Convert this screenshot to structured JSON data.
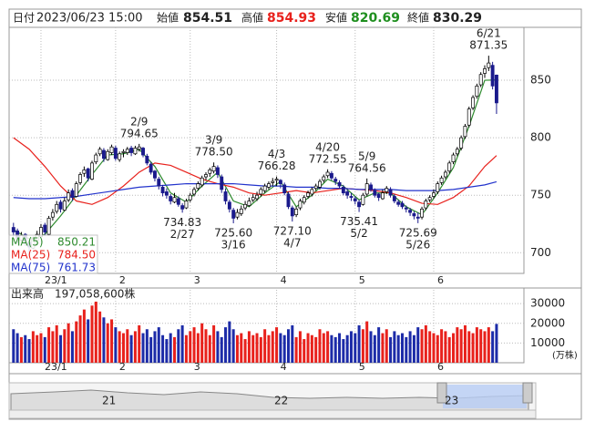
{
  "header": {
    "date_label": "日付",
    "date": "2023/06/23 15:00",
    "open_label": "始値",
    "open": "854.51",
    "high_label": "高値",
    "high": "854.93",
    "low_label": "安値",
    "low": "820.69",
    "close_label": "終値",
    "close": "830.29"
  },
  "chart_data": [
    {
      "type": "candlestick",
      "ylim": [
        682,
        896
      ],
      "yticks": [
        700,
        750,
        800,
        850
      ],
      "grid": true,
      "xticks": [
        {
          "value": 7,
          "label": "23/1"
        },
        {
          "value": 26,
          "label": "2"
        },
        {
          "value": 45,
          "label": "3"
        },
        {
          "value": 67,
          "label": "4"
        },
        {
          "value": 87,
          "label": "5"
        },
        {
          "value": 107,
          "label": "6"
        }
      ],
      "up_color": "#ffffff",
      "down_color": "#1a1a8c",
      "candles": [
        [
          722,
          726,
          714,
          718
        ],
        [
          719,
          721,
          708,
          712
        ],
        [
          711,
          718,
          709,
          715
        ],
        [
          716,
          717,
          706,
          710
        ],
        [
          709,
          711,
          700,
          705
        ],
        [
          704,
          714,
          703,
          712
        ],
        [
          711,
          719,
          710,
          716
        ],
        [
          714,
          725,
          712,
          722
        ],
        [
          724,
          726,
          715,
          718
        ],
        [
          716,
          732,
          715,
          730
        ],
        [
          731,
          738,
          728,
          735
        ],
        [
          736,
          745,
          734,
          742
        ],
        [
          744,
          746,
          735,
          738
        ],
        [
          737,
          748,
          736,
          745
        ],
        [
          746,
          755,
          744,
          752
        ],
        [
          754,
          756,
          745,
          748
        ],
        [
          749,
          762,
          748,
          760
        ],
        [
          761,
          770,
          759,
          768
        ],
        [
          769,
          775,
          766,
          772
        ],
        [
          773,
          774,
          762,
          765
        ],
        [
          764,
          780,
          763,
          778
        ],
        [
          779,
          787,
          777,
          785
        ],
        [
          786,
          792,
          784,
          790
        ],
        [
          789,
          791,
          779,
          782
        ],
        [
          781,
          790,
          780,
          788
        ],
        [
          787,
          794,
          785,
          792
        ],
        [
          791,
          793,
          780,
          782
        ],
        [
          781,
          788,
          779,
          786
        ],
        [
          787,
          790,
          783,
          788
        ],
        [
          787,
          792,
          785,
          790
        ],
        [
          791,
          793,
          784,
          787
        ],
        [
          786,
          793,
          785,
          791
        ],
        [
          790,
          794.65,
          788,
          792
        ],
        [
          791,
          792,
          783,
          785
        ],
        [
          784,
          786,
          776,
          778
        ],
        [
          777,
          779,
          768,
          770
        ],
        [
          771,
          772,
          762,
          765
        ],
        [
          764,
          766,
          755,
          758
        ],
        [
          757,
          759,
          749,
          752
        ],
        [
          753,
          756,
          747,
          750
        ],
        [
          749,
          751,
          742,
          745
        ],
        [
          744,
          752,
          743,
          748
        ],
        [
          747,
          749,
          740,
          742
        ],
        [
          741,
          743,
          734.83,
          738
        ],
        [
          739,
          747,
          738,
          745
        ],
        [
          746,
          752,
          744,
          750
        ],
        [
          751,
          757,
          749,
          755
        ],
        [
          756,
          762,
          754,
          760
        ],
        [
          759,
          767,
          757,
          765
        ],
        [
          766,
          770,
          763,
          768
        ],
        [
          769,
          774,
          766,
          772
        ],
        [
          771,
          778.5,
          769,
          775
        ],
        [
          774,
          776,
          765,
          768
        ],
        [
          766,
          768,
          752,
          755
        ],
        [
          753,
          756,
          742,
          745
        ],
        [
          744,
          746,
          735,
          738
        ],
        [
          737,
          739,
          725.6,
          730
        ],
        [
          731,
          738,
          729,
          735
        ],
        [
          734,
          741,
          732,
          738
        ],
        [
          739,
          745,
          737,
          742
        ],
        [
          741,
          748,
          740,
          745
        ],
        [
          746,
          751,
          744,
          748
        ],
        [
          747,
          753,
          745,
          750
        ],
        [
          751,
          757,
          749,
          755
        ],
        [
          754,
          760,
          752,
          758
        ],
        [
          757,
          762,
          755,
          760
        ],
        [
          761,
          765,
          758,
          762
        ],
        [
          763,
          766.28,
          758,
          764
        ],
        [
          763,
          764,
          756,
          760
        ],
        [
          759,
          761,
          750,
          752
        ],
        [
          751,
          753,
          738,
          740
        ],
        [
          739,
          741,
          727.1,
          732
        ],
        [
          733,
          740,
          731,
          738
        ],
        [
          739,
          747,
          737,
          745
        ],
        [
          744,
          750,
          742,
          748
        ],
        [
          749,
          754,
          747,
          752
        ],
        [
          751,
          757,
          749,
          755
        ],
        [
          756,
          760,
          754,
          758
        ],
        [
          757,
          764,
          755,
          762
        ],
        [
          763,
          768,
          761,
          766
        ],
        [
          767,
          772.55,
          765,
          770
        ],
        [
          769,
          771,
          763,
          765
        ],
        [
          764,
          766,
          759,
          762
        ],
        [
          761,
          763,
          756,
          758
        ],
        [
          757,
          759,
          750,
          752
        ],
        [
          753,
          755,
          747,
          750
        ],
        [
          749,
          752,
          745,
          748
        ],
        [
          747,
          749,
          742,
          745
        ],
        [
          744,
          746,
          735.41,
          740
        ],
        [
          742,
          752,
          741,
          750
        ],
        [
          751,
          764.56,
          749,
          760
        ],
        [
          759,
          761,
          753,
          755
        ],
        [
          754,
          756,
          748,
          750
        ],
        [
          751,
          752,
          745,
          748
        ],
        [
          747,
          755,
          746,
          752
        ],
        [
          753,
          758,
          751,
          756
        ],
        [
          755,
          757,
          748,
          750
        ],
        [
          749,
          751,
          743,
          745
        ],
        [
          744,
          746,
          740,
          742
        ],
        [
          743,
          745,
          738,
          740
        ],
        [
          739,
          741,
          735,
          738
        ],
        [
          737,
          739,
          732,
          735
        ],
        [
          734,
          736,
          729,
          732
        ],
        [
          731,
          735,
          725.69,
          730
        ],
        [
          731,
          740,
          729,
          738
        ],
        [
          739,
          747,
          737,
          745
        ],
        [
          746,
          750,
          744,
          748
        ],
        [
          749,
          755,
          747,
          752
        ],
        [
          753,
          762,
          751,
          760
        ],
        [
          761,
          767,
          759,
          765
        ],
        [
          766,
          772,
          764,
          770
        ],
        [
          771,
          780,
          769,
          778
        ],
        [
          779,
          787,
          777,
          785
        ],
        [
          786,
          792,
          784,
          790
        ],
        [
          791,
          802,
          789,
          800
        ],
        [
          801,
          812,
          799,
          810
        ],
        [
          811,
          827,
          809,
          825
        ],
        [
          826,
          837,
          824,
          835
        ],
        [
          836,
          847,
          834,
          845
        ],
        [
          846,
          857,
          844,
          855
        ],
        [
          856,
          863,
          852,
          860
        ],
        [
          861,
          871.35,
          858,
          865
        ],
        [
          863,
          866,
          842,
          845
        ],
        [
          854.51,
          854.93,
          820.69,
          830.29
        ]
      ],
      "series": [
        {
          "name": "MA(5)",
          "color": "#2e8b2e",
          "legend_value": "850.21",
          "x": [
            0,
            4,
            8,
            12,
            16,
            20,
            24,
            28,
            32,
            36,
            40,
            44,
            48,
            52,
            56,
            60,
            64,
            68,
            72,
            76,
            80,
            84,
            88,
            92,
            96,
            100,
            104,
            108,
            112,
            116,
            120,
            123
          ],
          "values": [
            720,
            712,
            716,
            732,
            750,
            768,
            785,
            786,
            790,
            775,
            752,
            744,
            758,
            770,
            745,
            740,
            752,
            762,
            740,
            750,
            764,
            758,
            746,
            752,
            752,
            740,
            733,
            752,
            774,
            810,
            850,
            850.21
          ]
        },
        {
          "name": "MA(25)",
          "color": "#e8211c",
          "legend_value": "784.50",
          "x": [
            0,
            4,
            8,
            12,
            16,
            20,
            24,
            28,
            32,
            36,
            40,
            44,
            48,
            52,
            56,
            60,
            64,
            68,
            72,
            76,
            80,
            84,
            88,
            92,
            96,
            100,
            104,
            108,
            112,
            116,
            120,
            123
          ],
          "values": [
            800,
            790,
            775,
            758,
            745,
            742,
            748,
            758,
            770,
            778,
            776,
            770,
            764,
            760,
            757,
            752,
            750,
            752,
            754,
            752,
            754,
            756,
            755,
            754,
            752,
            748,
            743,
            742,
            748,
            758,
            775,
            784.5
          ]
        },
        {
          "name": "MA(75)",
          "color": "#2233cc",
          "legend_value": "761.73",
          "x": [
            0,
            4,
            8,
            12,
            16,
            20,
            24,
            28,
            32,
            36,
            40,
            44,
            48,
            52,
            56,
            60,
            64,
            68,
            72,
            76,
            80,
            84,
            88,
            92,
            96,
            100,
            104,
            108,
            112,
            116,
            120,
            123
          ],
          "values": [
            748,
            747,
            747,
            748,
            749,
            751,
            753,
            755,
            757,
            758,
            759,
            760,
            760,
            760,
            760,
            759,
            758,
            758,
            757,
            757,
            756,
            756,
            755,
            755,
            755,
            754,
            754,
            754,
            755,
            757,
            759,
            761.73
          ]
        }
      ],
      "annotations": [
        {
          "date": "2/9",
          "value": 794.65,
          "label": "794.65"
        },
        {
          "date": "2/27",
          "value": 734.83,
          "label": "734.83"
        },
        {
          "date": "3/9",
          "value": 778.5,
          "label": "778.50"
        },
        {
          "date": "3/16",
          "value": 725.6,
          "label": "725.60"
        },
        {
          "date": "4/3",
          "value": 766.28,
          "label": "766.28"
        },
        {
          "date": "4/7",
          "value": 727.1,
          "label": "727.10"
        },
        {
          "date": "4/20",
          "value": 772.55,
          "label": "772.55"
        },
        {
          "date": "5/2",
          "value": 735.41,
          "label": "735.41"
        },
        {
          "date": "5/9",
          "value": 764.56,
          "label": "764.56"
        },
        {
          "date": "5/26",
          "value": 725.69,
          "label": "725.69"
        },
        {
          "date": "6/21",
          "value": 871.35,
          "label": "871.35"
        }
      ]
    },
    {
      "type": "bar",
      "title": "出来高　197,058,600株",
      "unit": "(万株)",
      "ylim": [
        0,
        37000
      ],
      "yticks": [
        10000,
        20000,
        30000
      ],
      "up_color": "#e8211c",
      "down_color": "#1c2ba8",
      "values": [
        17000,
        15000,
        13000,
        14000,
        12000,
        16000,
        14000,
        15000,
        13000,
        18000,
        16000,
        19000,
        14000,
        17000,
        20000,
        16000,
        21000,
        24000,
        27000,
        22000,
        29000,
        31000,
        26000,
        23000,
        20000,
        22000,
        18000,
        16000,
        15000,
        17000,
        14000,
        16000,
        19000,
        15000,
        17000,
        13000,
        16000,
        18000,
        14000,
        12000,
        15000,
        13000,
        17000,
        19000,
        14000,
        16000,
        18000,
        15000,
        20000,
        17000,
        14000,
        19000,
        16000,
        13000,
        18000,
        21000,
        17000,
        14000,
        15000,
        12000,
        16000,
        14000,
        15000,
        13000,
        17000,
        14000,
        16000,
        18000,
        15000,
        14000,
        17000,
        19000,
        13000,
        16000,
        12000,
        15000,
        14000,
        13000,
        17000,
        15000,
        16000,
        14000,
        13000,
        15000,
        12000,
        14000,
        16000,
        15000,
        19000,
        17000,
        21000,
        16000,
        14000,
        18000,
        15000,
        17000,
        13000,
        16000,
        14000,
        15000,
        13000,
        16000,
        14000,
        18000,
        17000,
        19000,
        16000,
        15000,
        14000,
        17000,
        16000,
        13000,
        15000,
        18000,
        17000,
        19000,
        16000,
        15000,
        18000,
        17000,
        16000,
        18000,
        16000,
        19706
      ]
    }
  ],
  "navigator": {
    "labels": [
      "21",
      "22",
      "23"
    ]
  }
}
